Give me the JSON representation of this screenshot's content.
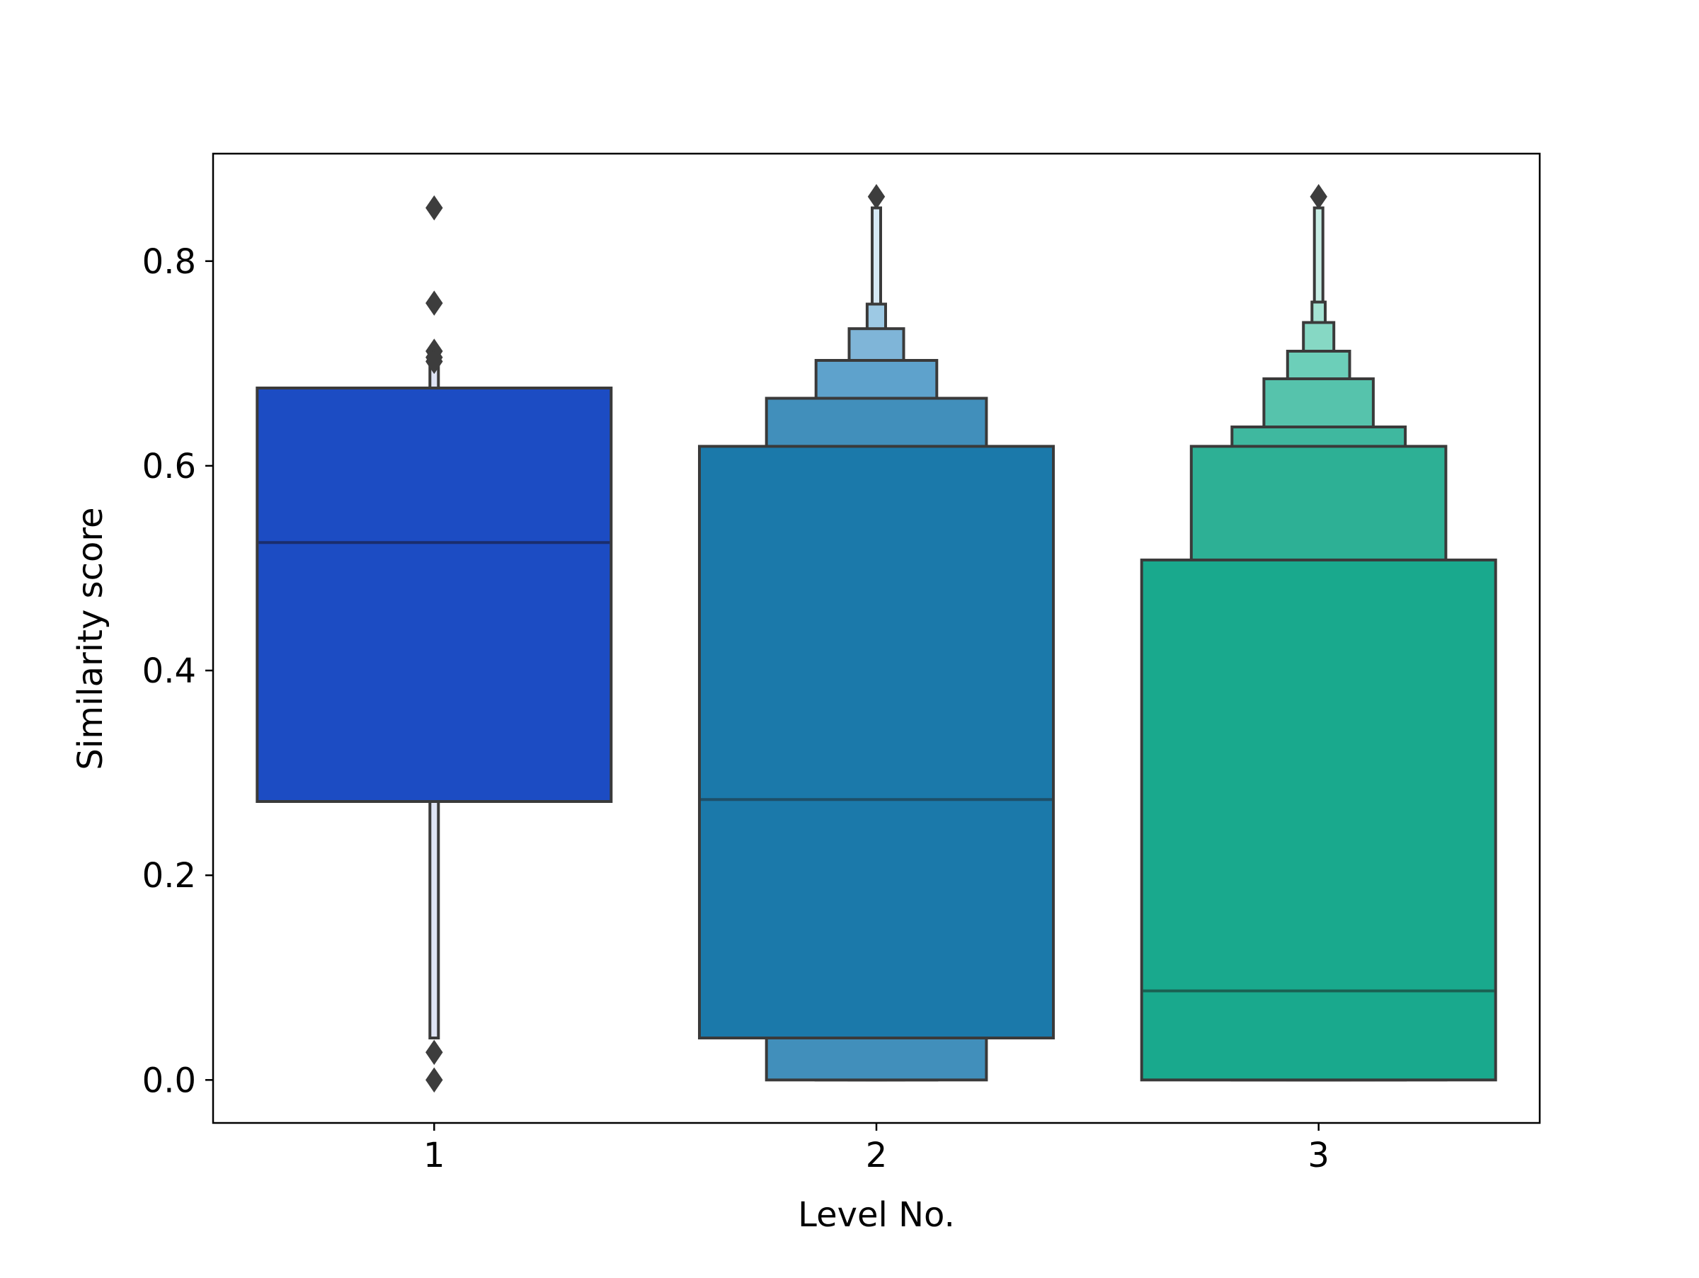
{
  "chart_data": {
    "type": "boxen",
    "title": "",
    "xlabel": "Level No.",
    "ylabel": "Similarity score",
    "ylim": [
      -0.042,
      0.905
    ],
    "y_ticks": [
      0.0,
      0.2,
      0.4,
      0.6,
      0.8
    ],
    "y_tick_labels": [
      "0.0",
      "0.2",
      "0.4",
      "0.6",
      "0.8"
    ],
    "categories": [
      "1",
      "2",
      "3"
    ],
    "grid": false,
    "legend": "none",
    "colors": {
      "edge": "#3a3a3a",
      "median_1": "#1a2d6e",
      "median_2": "#1e4f68",
      "median_3": "#1a6152"
    },
    "groups": [
      {
        "category": "1",
        "median": 0.525,
        "boxes": [
          {
            "lo": 0.041,
            "hi": 0.697,
            "color": "#dfe4f5"
          },
          {
            "lo": 0.272,
            "hi": 0.676,
            "color": "#1c4cc3"
          }
        ],
        "outliers": [
          0.852,
          0.759,
          0.712,
          0.706,
          0.702,
          0.027,
          0.0
        ]
      },
      {
        "category": "2",
        "median": 0.274,
        "boxes": [
          {
            "lo": 0.0,
            "hi": 0.852,
            "color": "#d6e9f5"
          },
          {
            "lo": 0.0,
            "hi": 0.758,
            "color": "#9dc9e4"
          },
          {
            "lo": 0.0,
            "hi": 0.734,
            "color": "#7fb5d8"
          },
          {
            "lo": 0.0,
            "hi": 0.703,
            "color": "#5ea2cc"
          },
          {
            "lo": 0.0,
            "hi": 0.666,
            "color": "#418fbb"
          },
          {
            "lo": 0.041,
            "hi": 0.619,
            "color": "#1b79aa"
          }
        ],
        "outliers": [
          0.863
        ]
      },
      {
        "category": "3",
        "median": 0.087,
        "boxes": [
          {
            "lo": 0.0,
            "hi": 0.852,
            "color": "#c8eee5"
          },
          {
            "lo": 0.0,
            "hi": 0.76,
            "color": "#a5e3d4"
          },
          {
            "lo": 0.0,
            "hi": 0.74,
            "color": "#86d8c4"
          },
          {
            "lo": 0.0,
            "hi": 0.712,
            "color": "#6ccfb9"
          },
          {
            "lo": 0.0,
            "hi": 0.685,
            "color": "#56c3ac"
          },
          {
            "lo": 0.0,
            "hi": 0.638,
            "color": "#3fb89f"
          },
          {
            "lo": 0.0,
            "hi": 0.619,
            "color": "#2db095"
          },
          {
            "lo": 0.0,
            "hi": 0.508,
            "color": "#19a98d"
          }
        ],
        "outliers": [
          0.863
        ]
      }
    ]
  }
}
